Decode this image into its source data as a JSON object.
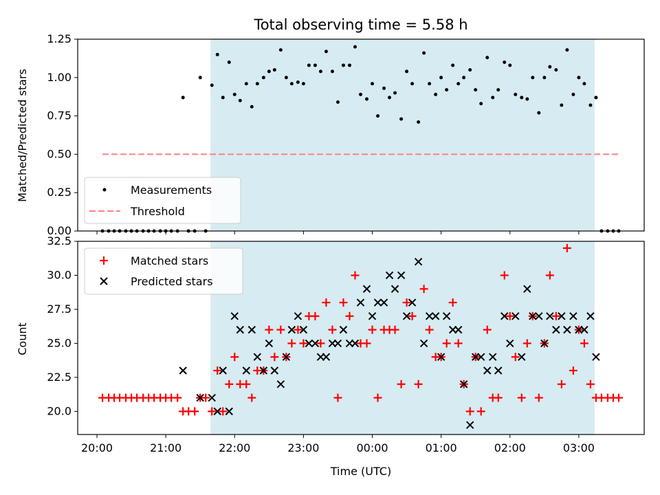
{
  "title": "Total observing time = 5.58 h",
  "chart_data": [
    {
      "type": "scatter",
      "panel": "top",
      "ylabel": "Matched/Predicted stars",
      "ylim": [
        0,
        1.25
      ],
      "yticks": [
        0,
        0.25,
        0.5,
        0.75,
        1.0,
        1.25
      ],
      "ytick_labels": [
        "0.00",
        "0.25",
        "0.50",
        "0.75",
        "1.00",
        "1.25"
      ],
      "shaded_span_hours": [
        21.65,
        27.23
      ],
      "legend_position": "lower-left",
      "series": [
        {
          "name": "Measurements",
          "marker": "dot",
          "color": "#000000",
          "x": [
            20.08,
            20.17,
            20.25,
            20.33,
            20.42,
            20.5,
            20.58,
            20.67,
            20.75,
            20.83,
            20.92,
            21.0,
            21.08,
            21.17,
            21.25,
            21.33,
            21.42,
            21.5,
            21.58,
            21.67,
            21.75,
            21.83,
            21.92,
            22.0,
            22.08,
            22.17,
            22.25,
            22.33,
            22.42,
            22.5,
            22.58,
            22.67,
            22.75,
            22.83,
            22.92,
            23.0,
            23.08,
            23.17,
            23.25,
            23.33,
            23.42,
            23.5,
            23.58,
            23.67,
            23.75,
            23.83,
            23.92,
            24.0,
            24.08,
            24.17,
            24.25,
            24.33,
            24.42,
            24.5,
            24.58,
            24.67,
            24.75,
            24.83,
            24.92,
            25.0,
            25.08,
            25.17,
            25.25,
            25.33,
            25.42,
            25.5,
            25.58,
            25.67,
            25.75,
            25.83,
            25.92,
            26.0,
            26.08,
            26.17,
            26.25,
            26.33,
            26.42,
            26.5,
            26.58,
            26.67,
            26.75,
            26.83,
            26.92,
            27.0,
            27.08,
            27.17,
            27.25,
            27.33,
            27.42,
            27.5,
            27.58
          ],
          "y": [
            0,
            0,
            0,
            0,
            0,
            0,
            0,
            0,
            0,
            0,
            0,
            0,
            0,
            0,
            0.87,
            0,
            0,
            1.0,
            0,
            0.95,
            1.15,
            0.87,
            1.1,
            0.89,
            0.85,
            0.96,
            0.81,
            0.96,
            1.0,
            1.04,
            1.05,
            1.18,
            1.0,
            0.96,
            0.97,
            0.96,
            1.08,
            1.08,
            1.04,
            1.17,
            1.04,
            0.84,
            1.08,
            1.08,
            1.2,
            0.89,
            0.86,
            0.96,
            0.75,
            0.93,
            0.87,
            0.9,
            0.73,
            1.04,
            0.96,
            0.71,
            1.16,
            0.96,
            0.89,
            1.0,
            0.92,
            1.08,
            0.96,
            1.0,
            1.05,
            0.92,
            0.83,
            1.13,
            0.87,
            0.92,
            1.1,
            1.08,
            0.89,
            0.87,
            0.86,
            1.0,
            0.77,
            1.0,
            1.07,
            1.05,
            0.82,
            1.18,
            0.89,
            1.0,
            0.96,
            0.82,
            0.87,
            0,
            0,
            0,
            0
          ]
        },
        {
          "name": "Threshold",
          "line": "dashed",
          "color": "#ff7f7f",
          "x": [
            20.08,
            27.58
          ],
          "y": [
            0.5,
            0.5
          ]
        }
      ]
    },
    {
      "type": "scatter",
      "panel": "bottom",
      "xlabel": "Time (UTC)",
      "ylabel": "Count",
      "ylim": [
        18.3,
        32.5
      ],
      "yticks": [
        20.0,
        22.5,
        25.0,
        27.5,
        30.0,
        32.5
      ],
      "ytick_labels": [
        "20.0",
        "22.5",
        "25.0",
        "27.5",
        "30.0",
        "32.5"
      ],
      "xlim_hours": [
        19.72,
        27.95
      ],
      "xticks_hours": [
        20,
        21,
        22,
        23,
        24,
        25,
        26,
        27
      ],
      "xtick_labels": [
        "20:00",
        "21:00",
        "22:00",
        "23:00",
        "00:00",
        "01:00",
        "02:00",
        "03:00"
      ],
      "shaded_span_hours": [
        21.65,
        27.23
      ],
      "legend_position": "upper-left",
      "series": [
        {
          "name": "Matched stars",
          "marker": "plus",
          "color": "#ff0000",
          "x": [
            20.08,
            20.17,
            20.25,
            20.33,
            20.42,
            20.5,
            20.58,
            20.67,
            20.75,
            20.83,
            20.92,
            21.0,
            21.08,
            21.17,
            21.25,
            21.33,
            21.42,
            21.5,
            21.58,
            21.67,
            21.75,
            21.83,
            21.92,
            22.0,
            22.08,
            22.17,
            22.25,
            22.33,
            22.42,
            22.5,
            22.58,
            22.67,
            22.75,
            22.83,
            22.92,
            23.0,
            23.08,
            23.17,
            23.25,
            23.33,
            23.42,
            23.5,
            23.58,
            23.67,
            23.75,
            23.83,
            23.92,
            24.0,
            24.08,
            24.17,
            24.25,
            24.33,
            24.42,
            24.5,
            24.58,
            24.67,
            24.75,
            24.83,
            24.92,
            25.0,
            25.08,
            25.17,
            25.25,
            25.33,
            25.42,
            25.5,
            25.58,
            25.67,
            25.75,
            25.83,
            25.92,
            26.0,
            26.08,
            26.17,
            26.25,
            26.33,
            26.42,
            26.5,
            26.58,
            26.67,
            26.75,
            26.83,
            26.92,
            27.0,
            27.08,
            27.17,
            27.25,
            27.33,
            27.42,
            27.5,
            27.58
          ],
          "y": [
            21,
            21,
            21,
            21,
            21,
            21,
            21,
            21,
            21,
            21,
            21,
            21,
            21,
            21,
            20,
            20,
            20,
            21,
            21,
            20,
            23,
            20,
            22,
            24,
            22,
            22,
            21,
            23,
            23,
            26,
            24,
            26,
            24,
            25,
            26,
            25,
            27,
            27,
            25,
            28,
            26,
            21,
            28,
            27,
            30,
            25,
            25,
            26,
            21,
            26,
            26,
            26,
            22,
            28,
            27,
            22,
            29,
            26,
            24,
            24,
            25,
            28,
            25,
            22,
            20,
            24,
            20,
            26,
            21,
            21,
            30,
            27,
            24,
            21,
            25,
            27,
            21,
            25,
            30,
            27,
            22,
            32,
            23,
            26,
            25,
            22,
            21,
            21,
            21,
            21,
            21
          ]
        },
        {
          "name": "Predicted stars",
          "marker": "x",
          "color": "#000000",
          "x": [
            21.25,
            21.5,
            21.67,
            21.75,
            21.83,
            21.92,
            22.0,
            22.08,
            22.17,
            22.25,
            22.33,
            22.42,
            22.5,
            22.58,
            22.67,
            22.75,
            22.83,
            22.92,
            23.0,
            23.08,
            23.17,
            23.25,
            23.33,
            23.42,
            23.5,
            23.58,
            23.67,
            23.75,
            23.83,
            23.92,
            24.0,
            24.08,
            24.17,
            24.25,
            24.33,
            24.42,
            24.5,
            24.58,
            24.67,
            24.75,
            24.83,
            24.92,
            25.0,
            25.08,
            25.17,
            25.25,
            25.33,
            25.42,
            25.5,
            25.58,
            25.67,
            25.75,
            25.83,
            25.92,
            26.0,
            26.08,
            26.17,
            26.25,
            26.33,
            26.42,
            26.5,
            26.58,
            26.67,
            26.75,
            26.83,
            26.92,
            27.0,
            27.08,
            27.17,
            27.25
          ],
          "y": [
            23,
            21,
            21,
            20,
            23,
            20,
            27,
            26,
            23,
            26,
            24,
            23,
            25,
            23,
            22,
            24,
            26,
            27,
            26,
            25,
            25,
            24,
            24,
            25,
            25,
            26,
            25,
            25,
            28,
            29,
            27,
            28,
            28,
            30,
            29,
            30,
            27,
            28,
            31,
            25,
            27,
            27,
            24,
            27,
            26,
            26,
            22,
            19,
            24,
            24,
            23,
            24,
            23,
            27,
            25,
            27,
            24,
            29,
            27,
            27,
            25,
            27,
            26,
            27,
            26,
            27,
            26,
            26,
            27,
            24
          ]
        }
      ]
    }
  ]
}
